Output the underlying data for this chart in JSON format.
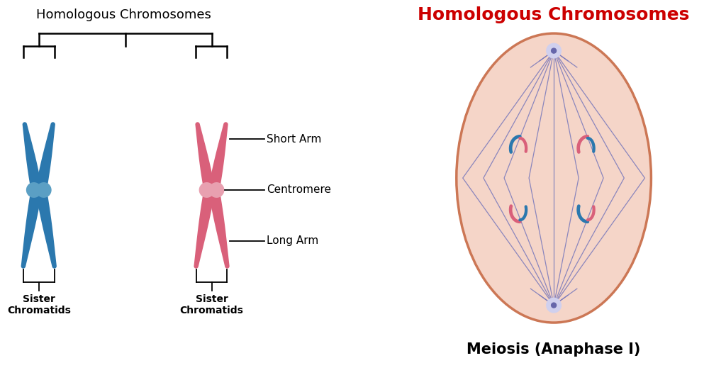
{
  "title_left": "Homologous Chromosomes",
  "title_right": "Homologous Chromosomes",
  "subtitle_right": "Meiosis (Anaphase I)",
  "title_right_color": "#cc0000",
  "bg_color": "#ffffff",
  "blue_color": "#2b78ae",
  "blue_centromere": "#5b9fc4",
  "pink_color": "#d9607a",
  "pink_centromere": "#e8a0b0",
  "cell_fill": "#f5d5c8",
  "cell_outline": "#cc7755",
  "spindle_color": "#7878bb",
  "pole_fill": "#d0d0ee",
  "pole_dot": "#6666aa",
  "labels": {
    "short_arm": "Short Arm",
    "centromere": "Centromere",
    "long_arm": "Long Arm",
    "sister1": "Sister\nChromatids",
    "sister2": "Sister\nChromatids"
  }
}
